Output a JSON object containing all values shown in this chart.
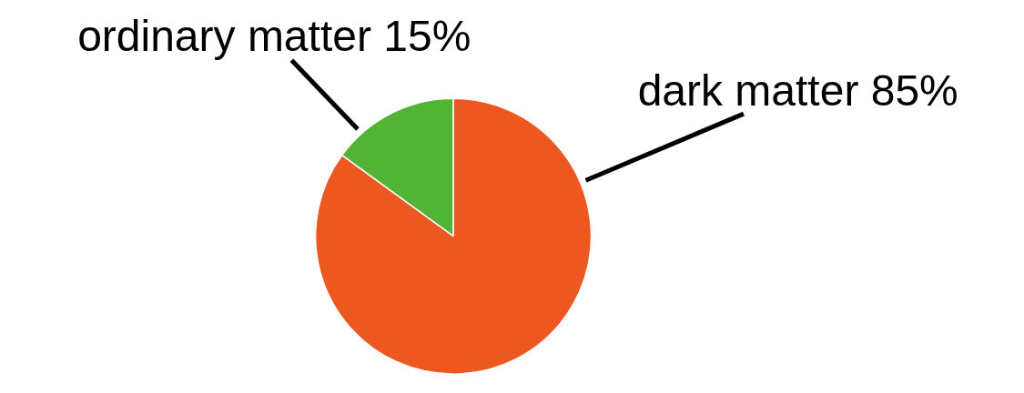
{
  "chart_data": {
    "type": "pie",
    "categories": [
      "ordinary matter",
      "dark matter"
    ],
    "values": [
      15,
      85
    ],
    "colors": [
      "#52b435",
      "#ec581f"
    ],
    "value_labels": [
      "15%",
      "85%"
    ]
  }
}
